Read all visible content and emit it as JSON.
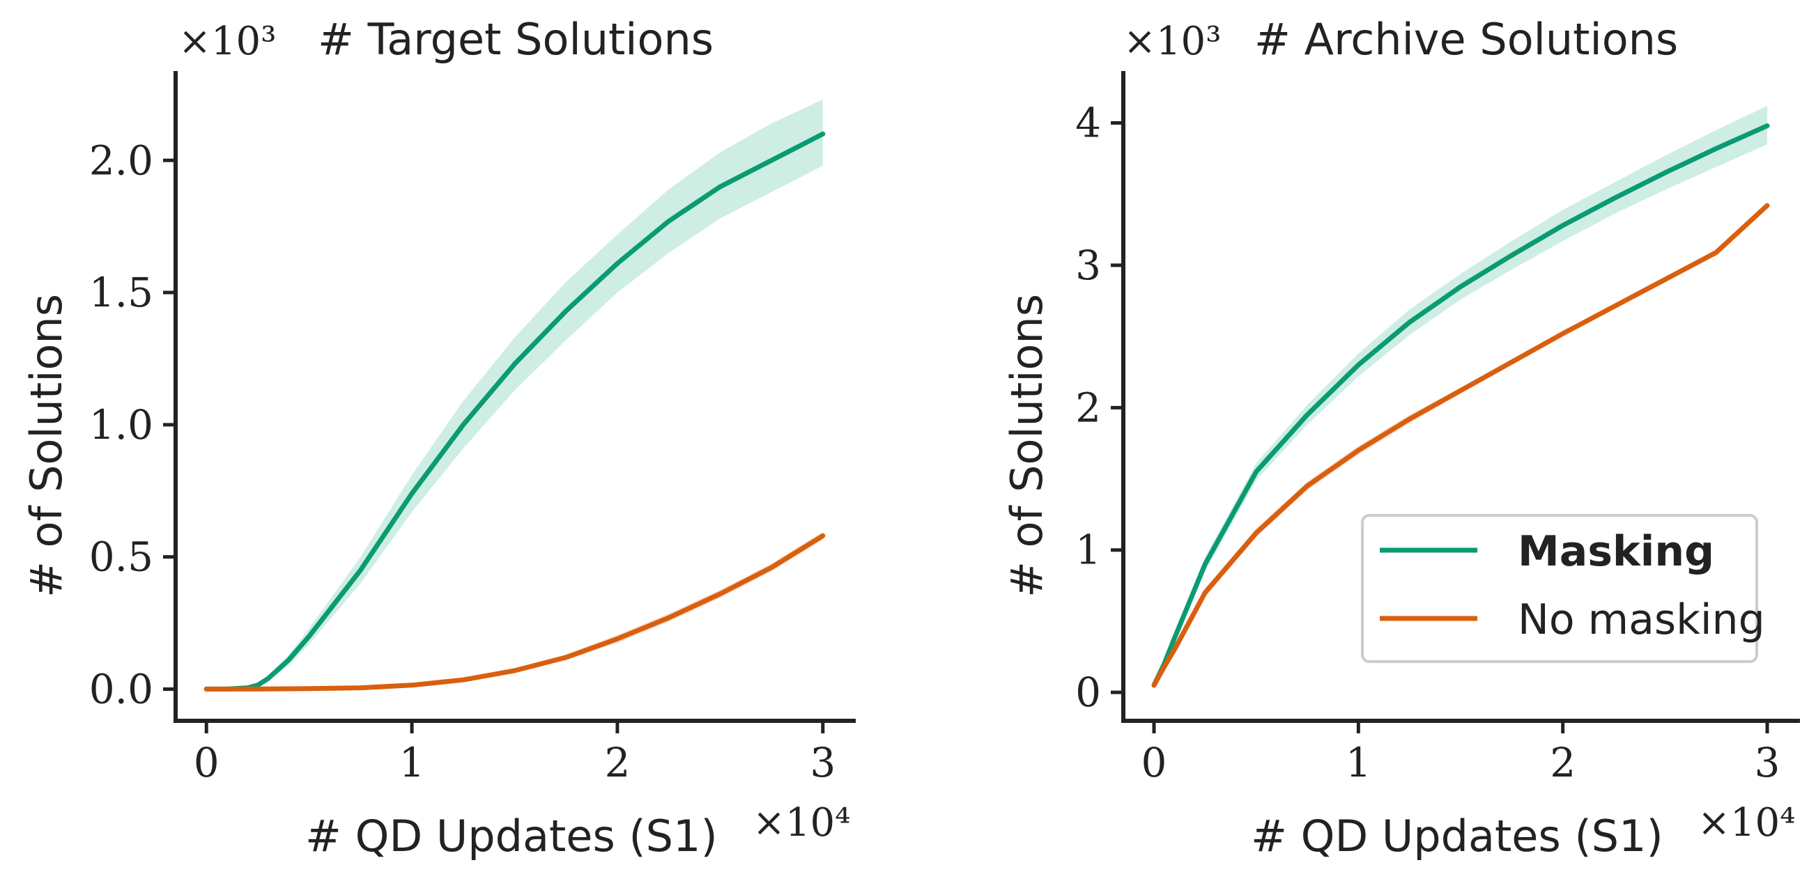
{
  "chart_data": [
    {
      "type": "line",
      "title": "# Target Solutions",
      "xlabel": "# QD Updates (S1)",
      "ylabel": "# of Solutions",
      "x_multiplier": "×10⁴",
      "y_multiplier": "×10³",
      "xlim": [
        -0.15,
        3.15
      ],
      "ylim": [
        -0.12,
        2.33
      ],
      "xticks": [
        0,
        1,
        2,
        3
      ],
      "xtick_labels": [
        "0",
        "1",
        "2",
        "3"
      ],
      "yticks": [
        0.0,
        0.5,
        1.0,
        1.5,
        2.0
      ],
      "ytick_labels": [
        "0.0",
        "0.5",
        "1.0",
        "1.5",
        "2.0"
      ],
      "grid": false,
      "series": [
        {
          "name": "Masking",
          "color": "#0a9b73",
          "band_color": "#bfe8d9",
          "x": [
            0,
            0.1,
            0.2,
            0.25,
            0.3,
            0.4,
            0.5,
            0.75,
            1.0,
            1.25,
            1.5,
            1.75,
            2.0,
            2.25,
            2.5,
            2.75,
            3.0
          ],
          "y": [
            0,
            0,
            0.005,
            0.015,
            0.04,
            0.11,
            0.2,
            0.45,
            0.74,
            1.0,
            1.23,
            1.43,
            1.61,
            1.77,
            1.9,
            2.0,
            2.1
          ],
          "y_low": [
            0,
            0,
            0.002,
            0.01,
            0.03,
            0.09,
            0.17,
            0.4,
            0.67,
            0.91,
            1.13,
            1.32,
            1.5,
            1.65,
            1.78,
            1.88,
            1.98
          ],
          "y_high": [
            0,
            0,
            0.008,
            0.02,
            0.05,
            0.13,
            0.23,
            0.5,
            0.81,
            1.09,
            1.33,
            1.54,
            1.72,
            1.89,
            2.03,
            2.14,
            2.23
          ]
        },
        {
          "name": "No masking",
          "color": "#d95f0e",
          "band_color": "#f5d2bf",
          "x": [
            0,
            0.25,
            0.5,
            0.75,
            1.0,
            1.25,
            1.5,
            1.75,
            2.0,
            2.25,
            2.5,
            2.75,
            3.0
          ],
          "y": [
            0,
            0,
            0.002,
            0.005,
            0.015,
            0.035,
            0.07,
            0.12,
            0.19,
            0.27,
            0.36,
            0.46,
            0.58
          ],
          "y_low": [
            0,
            0,
            0.001,
            0.004,
            0.012,
            0.03,
            0.062,
            0.11,
            0.175,
            0.255,
            0.345,
            0.445,
            0.565
          ],
          "y_high": [
            0,
            0,
            0.003,
            0.006,
            0.018,
            0.04,
            0.078,
            0.13,
            0.205,
            0.285,
            0.375,
            0.475,
            0.595
          ]
        }
      ]
    },
    {
      "type": "line",
      "title": "# Archive Solutions",
      "xlabel": "# QD Updates (S1)",
      "ylabel": "# of Solutions",
      "x_multiplier": "×10⁴",
      "y_multiplier": "×10³",
      "xlim": [
        -0.15,
        3.15
      ],
      "ylim": [
        -0.2,
        4.35
      ],
      "xticks": [
        0,
        1,
        2,
        3
      ],
      "xtick_labels": [
        "0",
        "1",
        "2",
        "3"
      ],
      "yticks": [
        0,
        1,
        2,
        3,
        4
      ],
      "ytick_labels": [
        "0",
        "1",
        "2",
        "3",
        "4"
      ],
      "grid": false,
      "legend_placement": "lower-right",
      "series": [
        {
          "name": "Masking",
          "color": "#0a9b73",
          "band_color": "#bfe8d9",
          "x": [
            0,
            0.05,
            0.1,
            0.25,
            0.5,
            0.75,
            1.0,
            1.25,
            1.5,
            1.75,
            2.0,
            2.25,
            2.5,
            2.75,
            3.0
          ],
          "y": [
            0.05,
            0.2,
            0.38,
            0.9,
            1.55,
            1.95,
            2.3,
            2.6,
            2.85,
            3.07,
            3.28,
            3.47,
            3.65,
            3.82,
            3.98
          ],
          "y_low": [
            0.04,
            0.18,
            0.35,
            0.85,
            1.49,
            1.88,
            2.22,
            2.51,
            2.76,
            2.97,
            3.17,
            3.36,
            3.53,
            3.69,
            3.85
          ],
          "y_high": [
            0.06,
            0.22,
            0.41,
            0.95,
            1.61,
            2.02,
            2.38,
            2.69,
            2.94,
            3.17,
            3.39,
            3.58,
            3.77,
            3.95,
            4.12
          ]
        },
        {
          "name": "No masking",
          "color": "#d95f0e",
          "band_color": "#f5d2bf",
          "x": [
            0,
            0.05,
            0.1,
            0.25,
            0.5,
            0.75,
            1.0,
            1.25,
            1.5,
            1.75,
            2.0,
            2.25,
            2.5,
            2.75,
            3.0
          ],
          "y": [
            0.05,
            0.18,
            0.3,
            0.7,
            1.12,
            1.45,
            1.7,
            1.92,
            2.12,
            2.32,
            2.52,
            2.71,
            2.9,
            3.09,
            3.42
          ],
          "y_low": [
            0.04,
            0.17,
            0.28,
            0.67,
            1.09,
            1.42,
            1.67,
            1.89,
            2.1,
            2.3,
            2.5,
            2.69,
            2.88,
            3.07,
            3.4
          ],
          "y_high": [
            0.06,
            0.19,
            0.32,
            0.73,
            1.15,
            1.48,
            1.73,
            1.95,
            2.14,
            2.34,
            2.54,
            2.73,
            2.92,
            3.11,
            3.44
          ]
        }
      ]
    }
  ],
  "legend": {
    "entries": [
      "Masking",
      "No masking"
    ],
    "bold_entry": "Masking"
  }
}
